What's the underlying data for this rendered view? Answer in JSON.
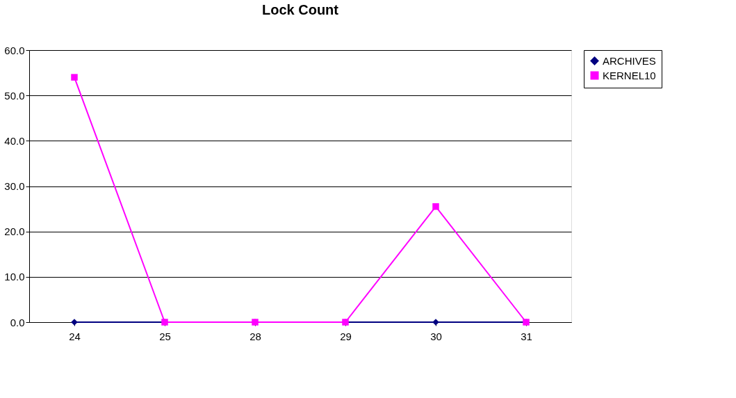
{
  "chart_data": {
    "type": "line",
    "title": "Lock Count",
    "categories": [
      "24",
      "25",
      "28",
      "29",
      "30",
      "31"
    ],
    "series": [
      {
        "name": "ARCHIVES",
        "color": "#000080",
        "marker": "diamond",
        "values": [
          0,
          0,
          0,
          0,
          0,
          0
        ]
      },
      {
        "name": "KERNEL10",
        "color": "#ff00ff",
        "marker": "square",
        "values": [
          54,
          0,
          0,
          0,
          25.5,
          0
        ]
      }
    ],
    "ylim": [
      0,
      60
    ],
    "yticks": [
      {
        "value": 0,
        "label": "0.0"
      },
      {
        "value": 10,
        "label": "10.0"
      },
      {
        "value": 20,
        "label": "20.0"
      },
      {
        "value": 30,
        "label": "30.0"
      },
      {
        "value": 40,
        "label": "40.0"
      },
      {
        "value": 50,
        "label": "50.0"
      },
      {
        "value": 60,
        "label": "60.0"
      }
    ],
    "grid": "y",
    "legend": "right"
  }
}
